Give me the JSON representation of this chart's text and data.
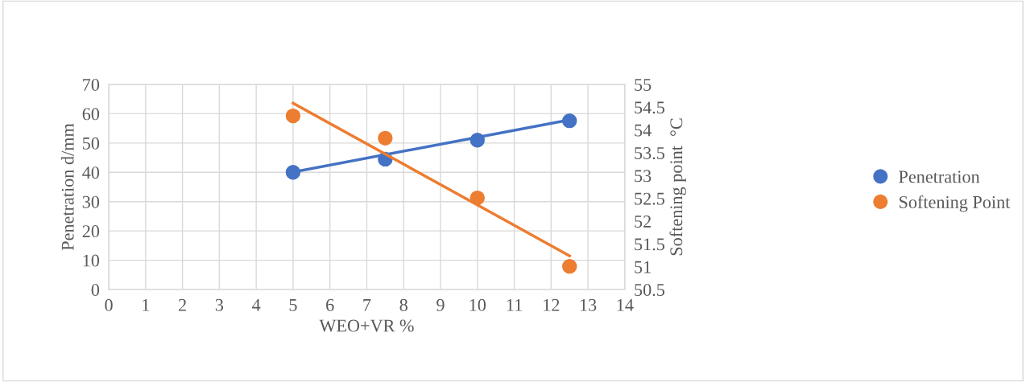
{
  "chart_data": {
    "type": "scatter",
    "xlabel": "WEO+VR %",
    "ylabel": "Penetration d/mm",
    "y2label": "Softening point  °C",
    "xlim": [
      0,
      14
    ],
    "xticks": [
      0,
      1,
      2,
      3,
      4,
      5,
      6,
      7,
      8,
      9,
      10,
      11,
      12,
      13,
      14
    ],
    "ylim": [
      0,
      70
    ],
    "yticks": [
      0,
      10,
      20,
      30,
      40,
      50,
      60,
      70
    ],
    "y2lim": [
      50.5,
      55
    ],
    "y2ticks": [
      50.5,
      51,
      51.5,
      52,
      52.5,
      53,
      53.5,
      54,
      54.5,
      55
    ],
    "grid": true,
    "legend": "right",
    "marker": "circle",
    "series": [
      {
        "name": "Penetration",
        "color": "#4472c4",
        "x": [
          5,
          7.5,
          10,
          12.5
        ],
        "values": [
          40,
          44.5,
          51,
          57.6
        ]
      },
      {
        "name": "Softening Point",
        "axis": "y2",
        "color": "#ed7d31",
        "x": [
          5,
          7.5,
          10,
          12.5
        ],
        "values": [
          54.31,
          53.82,
          52.51,
          51.01
        ]
      },
      {
        "type": "line",
        "color": "#4472c4",
        "x": [
          5,
          12.5
        ],
        "values": [
          40.1,
          57.9
        ],
        "marker": "none"
      },
      {
        "type": "line",
        "axis": "y2",
        "color": "#ed7d31",
        "x": [
          5,
          12.5
        ],
        "values": [
          54.59,
          51.24
        ],
        "marker": "none"
      }
    ]
  }
}
